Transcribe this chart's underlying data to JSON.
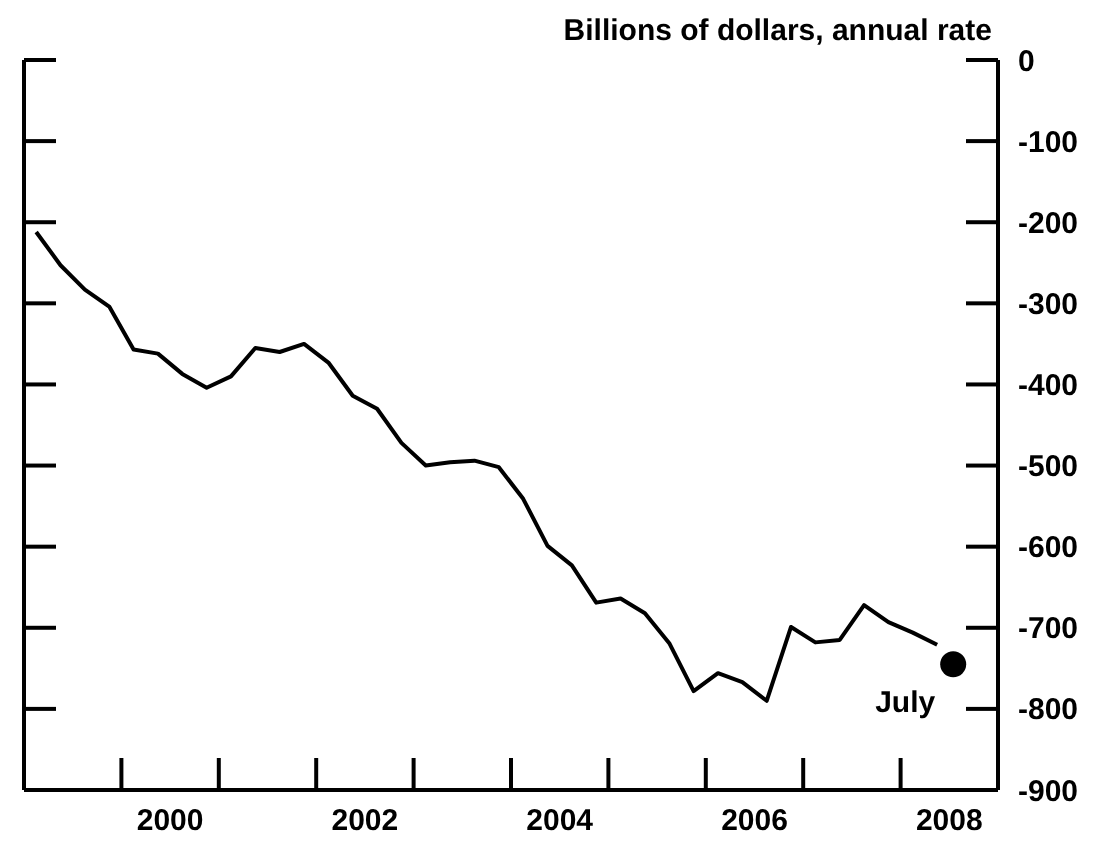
{
  "chart_data": {
    "type": "line",
    "ylabel": "Billions of dollars, annual rate",
    "xlim": [
      1999,
      2009
    ],
    "xticks": [
      {
        "value": 2000,
        "label": null
      },
      {
        "value": 2001,
        "label": null
      },
      {
        "value": 2002,
        "label": null
      },
      {
        "value": 2003,
        "label": null
      },
      {
        "value": 2004,
        "label": null
      },
      {
        "value": 2005,
        "label": null
      },
      {
        "value": 2006,
        "label": null
      },
      {
        "value": 2007,
        "label": null
      },
      {
        "value": 2008,
        "label": null
      },
      {
        "value": 2000.5,
        "label": "2000"
      },
      {
        "value": 2002.5,
        "label": "2002"
      },
      {
        "value": 2004.5,
        "label": "2004"
      },
      {
        "value": 2006.5,
        "label": "2006"
      },
      {
        "value": 2008.5,
        "label": "2008"
      }
    ],
    "ylim": [
      -900,
      0
    ],
    "yticks": [
      0,
      -100,
      -200,
      -300,
      -400,
      -500,
      -600,
      -700,
      -800,
      -900
    ],
    "series": [
      {
        "color": "#000000",
        "x": [
          1999.125,
          1999.375,
          1999.625,
          1999.875,
          2000.125,
          2000.375,
          2000.625,
          2000.875,
          2001.125,
          2001.375,
          2001.625,
          2001.875,
          2002.125,
          2002.375,
          2002.625,
          2002.875,
          2003.125,
          2003.375,
          2003.625,
          2003.875,
          2004.125,
          2004.375,
          2004.625,
          2004.875,
          2005.125,
          2005.375,
          2005.625,
          2005.875,
          2006.125,
          2006.375,
          2006.625,
          2006.875,
          2007.125,
          2007.375,
          2007.625,
          2007.875,
          2008.125,
          2008.375
        ],
        "values": [
          -212,
          -253,
          -283,
          -304,
          -357,
          -362,
          -387,
          -404,
          -390,
          -355,
          -360,
          -350,
          -373,
          -414,
          -430,
          -472,
          -500,
          -496,
          -494,
          -502,
          -541,
          -599,
          -623,
          -669,
          -664,
          -682,
          -719,
          -778,
          -756,
          -767,
          -790,
          -699,
          -718,
          -715,
          -672,
          -693,
          -706,
          -721
        ]
      },
      {
        "type": "scatter",
        "color": "#000000",
        "marker": "circle",
        "x": [
          2008.54
        ],
        "values": [
          -745
        ]
      }
    ],
    "annotations": [
      {
        "text": "July",
        "x": 2008.54,
        "y": -745
      }
    ]
  }
}
